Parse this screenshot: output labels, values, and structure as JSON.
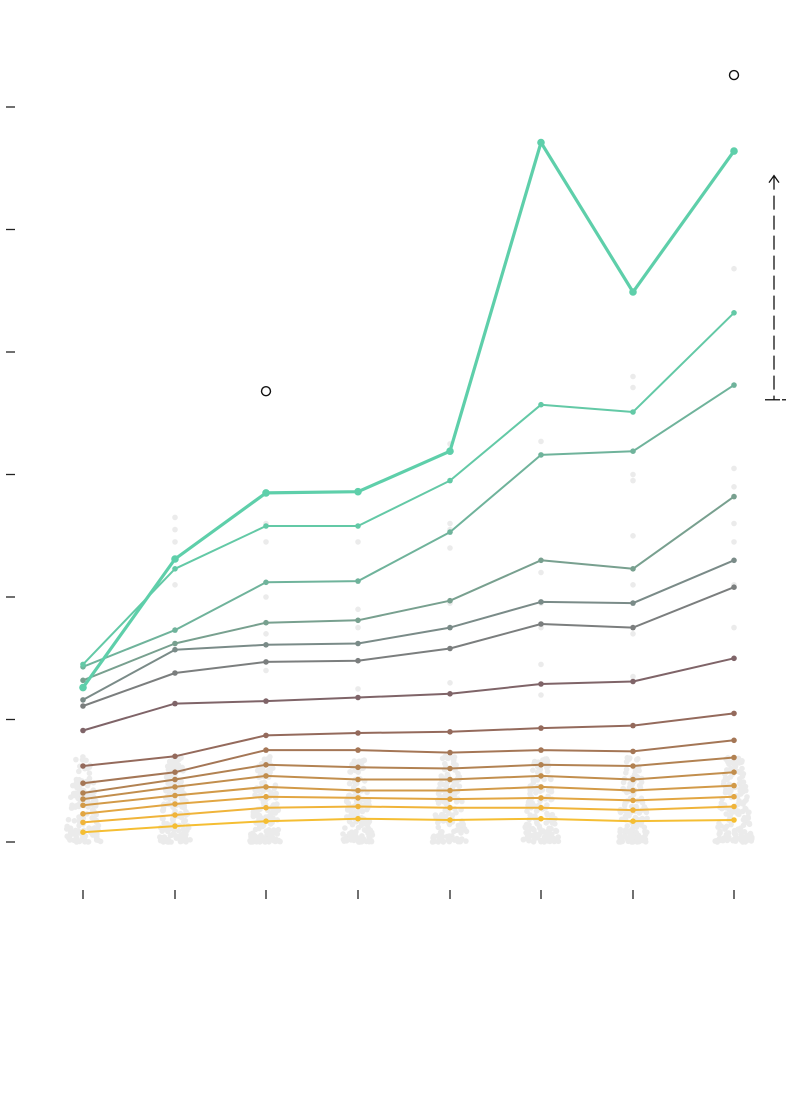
{
  "chart_data": {
    "type": "line",
    "title": "",
    "xlabel": "",
    "ylabel": "",
    "x_positions": [
      0,
      1,
      2,
      3,
      4,
      5,
      6,
      7
    ],
    "xlim": [
      0,
      7
    ],
    "ylim": [
      0,
      6
    ],
    "y_ticks": [
      0,
      1,
      2,
      3,
      4,
      5,
      6
    ],
    "grid": false,
    "legend": "none",
    "background_points": {
      "color": "#ebebeb",
      "spread_x": [
        0.18,
        0.16,
        0.17,
        0.16,
        0.18,
        0.18,
        0.17,
        0.19
      ],
      "typical_range": [
        0.0,
        0.7
      ],
      "extras": [
        [
          1,
          2.65
        ],
        [
          1,
          2.55
        ],
        [
          1,
          2.45
        ],
        [
          1,
          2.1
        ],
        [
          2,
          2.6
        ],
        [
          2,
          2.45
        ],
        [
          2,
          2.0
        ],
        [
          2,
          1.7
        ],
        [
          2,
          1.4
        ],
        [
          3,
          2.45
        ],
        [
          3,
          1.9
        ],
        [
          3,
          1.75
        ],
        [
          3,
          1.25
        ],
        [
          4,
          3.25
        ],
        [
          4,
          2.6
        ],
        [
          4,
          2.55
        ],
        [
          4,
          2.4
        ],
        [
          4,
          1.95
        ],
        [
          4,
          1.3
        ],
        [
          5,
          3.27
        ],
        [
          5,
          2.2
        ],
        [
          5,
          1.95
        ],
        [
          5,
          1.75
        ],
        [
          5,
          1.45
        ],
        [
          5,
          1.2
        ],
        [
          6,
          3.8
        ],
        [
          6,
          3.71
        ],
        [
          6,
          3.0
        ],
        [
          6,
          2.95
        ],
        [
          6,
          2.5
        ],
        [
          6,
          2.1
        ],
        [
          6,
          1.7
        ],
        [
          6,
          1.35
        ],
        [
          7,
          4.68
        ],
        [
          7,
          3.05
        ],
        [
          7,
          2.9
        ],
        [
          7,
          2.6
        ],
        [
          7,
          2.45
        ],
        [
          7,
          2.1
        ],
        [
          7,
          1.75
        ],
        [
          7,
          1.5
        ]
      ]
    },
    "series": [
      {
        "color": "#f5be33",
        "width": 2,
        "values": [
          0.08,
          0.13,
          0.17,
          0.19,
          0.18,
          0.19,
          0.17,
          0.18
        ]
      },
      {
        "color": "#f0b43a",
        "width": 2,
        "values": [
          0.16,
          0.22,
          0.28,
          0.29,
          0.28,
          0.28,
          0.26,
          0.29
        ]
      },
      {
        "color": "#e2a642",
        "width": 2,
        "values": [
          0.23,
          0.31,
          0.37,
          0.36,
          0.35,
          0.36,
          0.34,
          0.37
        ]
      },
      {
        "color": "#d29a48",
        "width": 2,
        "values": [
          0.3,
          0.38,
          0.45,
          0.42,
          0.42,
          0.45,
          0.42,
          0.46
        ]
      },
      {
        "color": "#c28e4d",
        "width": 2,
        "values": [
          0.35,
          0.45,
          0.54,
          0.51,
          0.51,
          0.54,
          0.51,
          0.57
        ]
      },
      {
        "color": "#b28252",
        "width": 2,
        "values": [
          0.4,
          0.51,
          0.63,
          0.61,
          0.6,
          0.63,
          0.62,
          0.69
        ]
      },
      {
        "color": "#a47656",
        "width": 2,
        "values": [
          0.48,
          0.57,
          0.75,
          0.75,
          0.73,
          0.75,
          0.74,
          0.83
        ]
      },
      {
        "color": "#946a5c",
        "width": 2,
        "values": [
          0.62,
          0.7,
          0.87,
          0.89,
          0.9,
          0.93,
          0.95,
          1.05
        ]
      },
      {
        "color": "#7f6468",
        "width": 2,
        "values": [
          0.91,
          1.13,
          1.15,
          1.18,
          1.21,
          1.29,
          1.31,
          1.5
        ]
      },
      {
        "color": "#7b7e7e",
        "width": 2,
        "values": [
          1.11,
          1.38,
          1.47,
          1.48,
          1.58,
          1.78,
          1.75,
          2.08
        ]
      },
      {
        "color": "#7a8b88",
        "width": 2,
        "values": [
          1.16,
          1.57,
          1.61,
          1.62,
          1.75,
          1.96,
          1.95,
          2.3
        ]
      },
      {
        "color": "#78a08f",
        "width": 2,
        "values": [
          1.32,
          1.62,
          1.79,
          1.81,
          1.97,
          2.3,
          2.23,
          2.82
        ]
      },
      {
        "color": "#6fb39b",
        "width": 2,
        "values": [
          1.43,
          1.73,
          2.12,
          2.13,
          2.53,
          3.16,
          3.19,
          3.73
        ]
      },
      {
        "color": "#63c9a6",
        "width": 2,
        "values": [
          1.45,
          2.23,
          2.58,
          2.58,
          2.95,
          3.57,
          3.51,
          4.32
        ]
      },
      {
        "color": "#5ecfaa",
        "width": 3.2,
        "values": [
          1.26,
          2.31,
          2.85,
          2.86,
          3.19,
          5.71,
          4.49,
          5.64
        ]
      }
    ],
    "outliers": [
      {
        "x": 2,
        "y": 3.68
      },
      {
        "x": 7,
        "y": 6.26
      }
    ],
    "annotation": {
      "type": "range-arrow",
      "x": 7.4,
      "y_from": 3.61,
      "y_to": 5.44
    }
  }
}
